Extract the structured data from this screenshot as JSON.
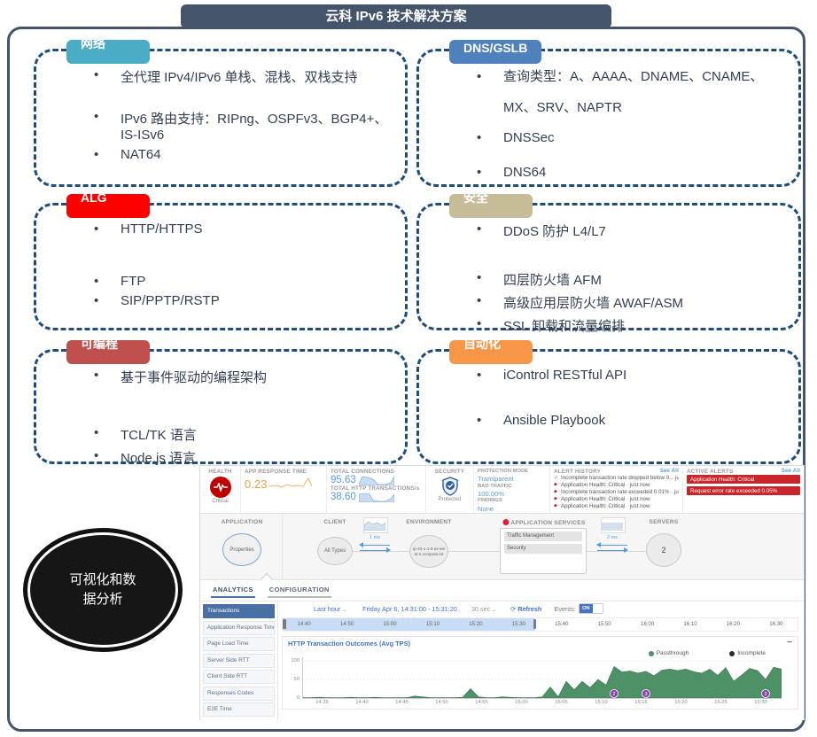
{
  "title": "云科 IPv6 技术解决方案",
  "bubble": {
    "text": "可视化和数据分析"
  },
  "boxes": [
    {
      "id": "network",
      "tab": "网络",
      "color": "#4BACC6",
      "items": [
        "全代理 IPv4/IPv6 单栈、混栈、双栈支持",
        "IPv6 路由支持：RIPng、OSPFv3、BGP4+、IS-ISv6",
        "NAT64"
      ]
    },
    {
      "id": "dns",
      "tab": "DNS/GSLB",
      "color": "#4F81BD",
      "items": [
        "查询类型：A、AAAA、DNAME、CNAME、MX、SRV、NAPTR",
        "DNSSec",
        "DNS64"
      ]
    },
    {
      "id": "alg",
      "tab": "ALG",
      "color": "#FF0000",
      "items": [
        "HTTP/HTTPS",
        "FTP",
        "SIP/PPTP/RSTP"
      ]
    },
    {
      "id": "security",
      "tab": "安全",
      "color": "#C4BD97",
      "items": [
        "DDoS 防护 L4/L7",
        "四层防火墙 AFM",
        "高级应用层防火墙 AWAF/ASM",
        "SSL 卸载和流量编排"
      ]
    },
    {
      "id": "programmable",
      "tab": "可编程",
      "color": "#C0504D",
      "items": [
        "基于事件驱动的编程架构",
        "TCL/TK 语言",
        "Node.js 语言"
      ]
    },
    {
      "id": "automation",
      "tab": "自动化",
      "color": "#F79646",
      "items": [
        "iControl RESTful API",
        "Ansible Playbook"
      ]
    }
  ],
  "dashboard": {
    "health": {
      "label": "HEALTH",
      "status": "Critical"
    },
    "metrics": {
      "app_response_time": {
        "label": "APP RESPONSE TIME",
        "value": "0.23"
      },
      "total_connections": {
        "label": "TOTAL CONNECTIONS",
        "value": "95.63"
      },
      "total_http_transactions": {
        "label": "TOTAL HTTP TRANSACTIONS/s",
        "value": "38.60"
      }
    },
    "security": {
      "label": "SECURITY",
      "status": "Protected"
    },
    "protection": {
      "mode_label": "PROTECTION MODE",
      "mode": "Transparent",
      "bad_traffic_label": "BAD TRAFFIC",
      "bad_traffic": "100.00%",
      "findings_label": "FINDINGS",
      "findings": "None"
    },
    "alert_history": {
      "label": "ALERT HISTORY",
      "see_all": "See All",
      "items": [
        {
          "icon": "check",
          "text": "Incomplete transaction rate dropped below 0... just now"
        },
        {
          "icon": "alert",
          "text": "Application Health: Critical · just now"
        },
        {
          "icon": "alert",
          "text": "Incomplete transaction rate exceeded 0.01% · just now"
        },
        {
          "icon": "alert",
          "text": "Application Health: Critical · just now"
        },
        {
          "icon": "alert",
          "text": "Application Health: Critical · just now"
        }
      ]
    },
    "active_alerts": {
      "label": "ACTIVE ALERTS",
      "see_all": "See All",
      "items": [
        "Application Health: Critical",
        "Request error rate exceeded 0.05%"
      ]
    },
    "map": {
      "application_label": "APPLICATION",
      "application_node": "Properties",
      "client_label": "CLIENT",
      "client_node": "All Types",
      "client_latency": "1 ms",
      "environment_label": "ENVIRONMENT",
      "environment_node": "ip-10-1-1-9.us-west-2.compute.int",
      "services_label": "APPLICATION SERVICES",
      "services": [
        "Traffic Management",
        "Security"
      ],
      "servers_label": "SERVERS",
      "servers_node": "2",
      "server_latency": "2 ms"
    },
    "tabs": [
      "ANALYTICS",
      "CONFIGURATION"
    ],
    "sidebar": [
      "Transactions",
      "Application Response Time",
      "Page Load Time",
      "Server Side RTT",
      "Client Side RTT",
      "Responses Codes",
      "E2E Time"
    ],
    "timebar": {
      "range_label": "Last hour",
      "date_range": "Friday Apr 6, 14:31:00 - 15:31:20",
      "interval": "30 sec",
      "refresh": "Refresh",
      "events_label": "Events:",
      "events_state": "ON"
    },
    "ruler": {
      "ticks": [
        "14:40",
        "14:50",
        "15:00",
        "15:10",
        "15:20",
        "15:30",
        "15:40",
        "15:50",
        "16:00",
        "16:10",
        "16:20",
        "16:30"
      ]
    },
    "colors": {
      "critical_red": "#C00000",
      "alert_red": "#C9252B",
      "value_blue": "#5B9BD5",
      "value_orange": "#E8A33D",
      "accent_blue": "#4472C4"
    }
  },
  "chart_data": {
    "type": "area",
    "title": "HTTP Transaction Outcomes (Avg TPS)",
    "x_start": "14:32",
    "x_step_minutes": 1,
    "x_ticks": [
      "14:35",
      "14:40",
      "14:45",
      "14:50",
      "14:55",
      "15:00",
      "15:05",
      "15:10",
      "15:15",
      "15:20",
      "15:25",
      "15:30"
    ],
    "yticks": [
      0,
      50,
      100
    ],
    "ylim": [
      0,
      110
    ],
    "legend_position": "top-right",
    "series": [
      {
        "name": "Passthrough",
        "color": "#4E9166",
        "values": [
          1,
          1,
          2,
          1,
          1,
          1,
          2,
          1,
          1,
          2,
          1,
          1,
          1,
          1,
          5,
          3,
          1,
          1,
          1,
          1,
          2,
          25,
          3,
          1,
          1,
          3,
          2,
          1,
          1,
          1,
          3,
          30,
          3,
          45,
          22,
          45,
          28,
          50,
          35,
          85,
          70,
          73,
          67,
          72,
          60,
          75,
          78,
          74,
          78,
          71,
          67,
          78,
          61,
          82,
          45,
          62,
          80,
          74,
          50,
          83,
          78
        ]
      },
      {
        "name": "Incomplete",
        "color": "#2B2B2B",
        "values": []
      }
    ],
    "events": [
      {
        "time": "15:11",
        "label": "2"
      },
      {
        "time": "15:15",
        "label": "3"
      },
      {
        "time": "15:30",
        "label": "2"
      }
    ],
    "event_color": "#8E44AD"
  }
}
